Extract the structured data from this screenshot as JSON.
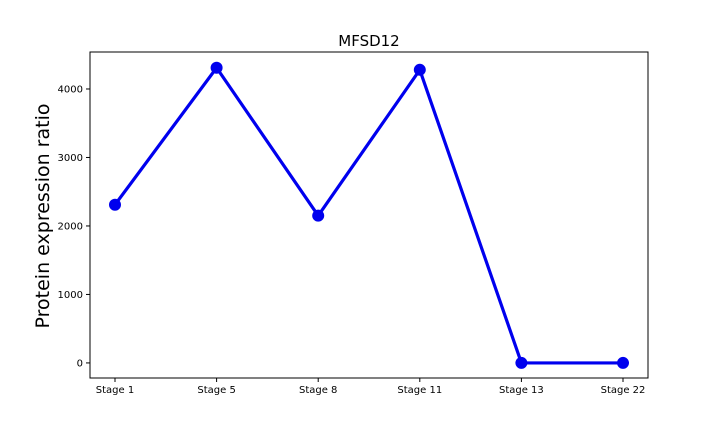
{
  "chart_data": {
    "type": "line",
    "title": "MFSD12",
    "xlabel": "",
    "ylabel": "Protein expression ratio",
    "categories": [
      "Stage 1",
      "Stage 5",
      "Stage 8",
      "Stage 11",
      "Stage 13",
      "Stage 22"
    ],
    "series": [
      {
        "values": [
          2310,
          4310,
          2150,
          4280,
          0,
          0
        ],
        "color": "#0000ee"
      }
    ],
    "ylim": [
      -220,
      4540
    ],
    "yticks": [
      0,
      1000,
      2000,
      3000,
      4000
    ],
    "grid": false,
    "legend": "none",
    "marker": "circle"
  }
}
